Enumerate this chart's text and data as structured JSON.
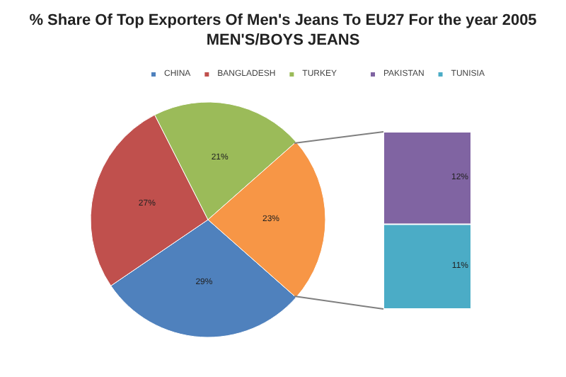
{
  "chart_data": [
    {
      "type": "pie",
      "title": "% Share Of Top Exporters Of Men's Jeans To EU27 For the year 2005",
      "subtitle": "MEN'S/BOYS JEANS",
      "categories": [
        "CHINA",
        "BANGLADESH",
        "TURKEY",
        null
      ],
      "values": [
        29,
        27,
        21,
        23
      ],
      "colors": [
        "#4f81bd",
        "#c0504d",
        "#9bbb59",
        "#f79646"
      ],
      "value_labels": [
        "29%",
        "27%",
        "21%",
        "23%"
      ],
      "legend": "top"
    },
    {
      "type": "bar",
      "stacked": true,
      "categories": [
        null
      ],
      "ylim": [
        0,
        23
      ],
      "tick_labels": false,
      "legend": "top",
      "series": [
        {
          "name": "TUNISIA",
          "color": "#4bacc6",
          "values": [
            11
          ],
          "value_labels": [
            "11%"
          ]
        },
        {
          "name": "PAKISTAN",
          "color": "#8064a2",
          "values": [
            12
          ],
          "value_labels": [
            "12%"
          ]
        }
      ]
    }
  ]
}
